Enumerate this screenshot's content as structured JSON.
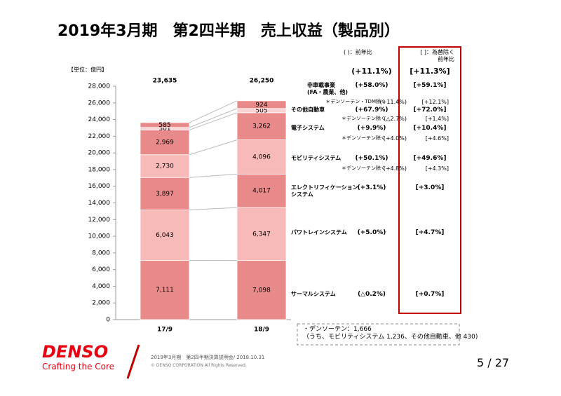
{
  "slide": {
    "title": "2019年3月期　第2四半期　売上収益（製品別）",
    "note_box": "・デンソーテン：1,666\n（うち、モビリティシステム 1,236、その他自動車、他 430)",
    "footer": {
      "brand": "DENSO",
      "tagline": "Crafting the Core",
      "event": "2019年3月期　第2四半期決算説明会/ 2018.10.31",
      "copyright": "© DENSO CORPORATION All Rights Reserved.",
      "page": "5 / 27"
    }
  },
  "chart_data": {
    "type": "stacked-bar",
    "unit_label": "【単位：億円】",
    "categories": [
      "17/9",
      "18/9"
    ],
    "totals": [
      23635,
      26250
    ],
    "total_labels": [
      "23,635",
      "26,250"
    ],
    "growth_note": "(  )：前年比",
    "fx_note": "[  ]：為替除く\n前年比",
    "total_growth": "(+11.1%)",
    "total_growth_ex_fx": "[+11.3%]",
    "ylim": [
      0,
      28000
    ],
    "yticks": [
      0,
      {
        "value": 2000,
        "label": "2,000"
      },
      {
        "value": 4000,
        "label": "4,000"
      },
      {
        "value": 6000,
        "label": "6,000"
      },
      {
        "value": 8000,
        "label": "8,000"
      },
      {
        "value": 10000,
        "label": "10,000"
      },
      {
        "value": 12000,
        "label": "12,000"
      },
      {
        "value": 14000,
        "label": "14,000"
      },
      {
        "value": 16000,
        "label": "16,000"
      },
      {
        "value": 18000,
        "label": "18,000"
      },
      {
        "value": 20000,
        "label": "20,000"
      },
      {
        "value": 22000,
        "label": "22,000"
      },
      {
        "value": 24000,
        "label": "24,000"
      },
      {
        "value": 26000,
        "label": "26,000"
      },
      {
        "value": 28000,
        "label": "28,000"
      }
    ],
    "series": [
      {
        "name": "サーマルシステム",
        "color": "#e88a8a",
        "values": [
          7111,
          7098
        ],
        "value_labels": [
          "7,111",
          "7,098"
        ],
        "growth": "(△0.2%)",
        "growth_ex_fx": "[+0.7%]"
      },
      {
        "name": "パワトレインシステム",
        "color": "#f8b9b9",
        "values": [
          6043,
          6347
        ],
        "value_labels": [
          "6,043",
          "6,347"
        ],
        "growth": "(+5.0%)",
        "growth_ex_fx": "[+4.7%]"
      },
      {
        "name": "エレクトリフィケーション\nシステム",
        "color": "#e88a8a",
        "values": [
          3897,
          4017
        ],
        "value_labels": [
          "3,897",
          "4,017"
        ],
        "growth": "(+3.1%)",
        "growth_ex_fx": "[+3.0%]"
      },
      {
        "name": "モビリティシステム",
        "color": "#f8b9b9",
        "values": [
          2730,
          4096
        ],
        "value_labels": [
          "2,730",
          "4,096"
        ],
        "growth": "(+50.1%)",
        "growth_ex_fx": "[+49.6%]",
        "sub": {
          "label": "＊デンソーテン除く",
          "growth": "(+4.8%)",
          "growth_ex_fx": "[+4.3%]"
        }
      },
      {
        "name": "電子システム",
        "color": "#e88a8a",
        "values": [
          2969,
          3262
        ],
        "value_labels": [
          "2,969",
          "3,262"
        ],
        "growth": "(+9.9%)",
        "growth_ex_fx": "[+10.4%]",
        "sub": {
          "label": "＊デンソーテン除く",
          "growth": "(+4.0%)",
          "growth_ex_fx": "[+4.6%]"
        }
      },
      {
        "name": "その他自動車",
        "color": "#fbd3d3",
        "values": [
          301,
          505
        ],
        "value_labels": [
          "301",
          "505"
        ],
        "growth": "(+67.9%)",
        "growth_ex_fx": "[+72.0%]",
        "sub": {
          "label": "＊デンソーテン除く",
          "growth": "(△2.7%)",
          "growth_ex_fx": "[+1.4%]"
        }
      },
      {
        "name": "非車載事業\n(FA・農業、他)",
        "color": "#e88a8a",
        "values": [
          585,
          924
        ],
        "value_labels": [
          "585",
          "924"
        ],
        "growth": "(+58.0%)",
        "growth_ex_fx": "[+59.1%]",
        "sub": {
          "label": "＊デンソーテン・TDM除く",
          "growth": "(+11.4%)",
          "growth_ex_fx": "[+12.1%]"
        }
      }
    ]
  }
}
